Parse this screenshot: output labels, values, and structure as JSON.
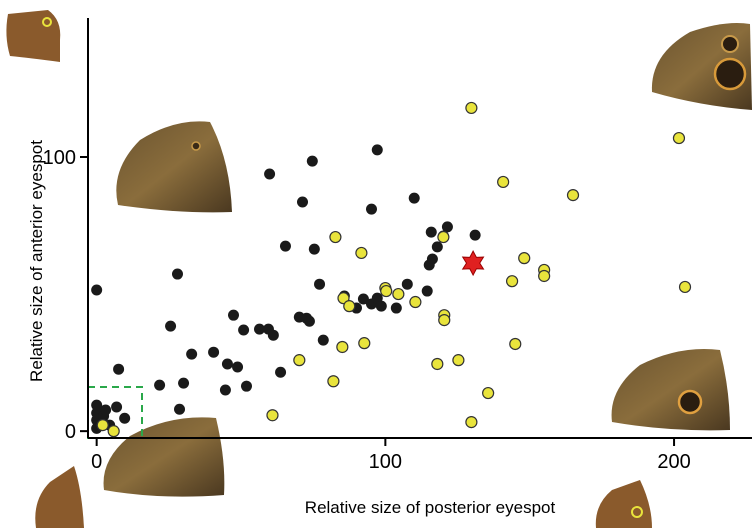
{
  "chart_data": {
    "type": "scatter",
    "x_label": "Relative size of posterior eyespot",
    "y_label": "Relative size of anterior eyespot",
    "xlim": [
      -3,
      227
    ],
    "ylim": [
      -2.5,
      150.7
    ],
    "xticks": [
      0,
      100,
      200
    ],
    "yticks": [
      0,
      100
    ],
    "series": [
      {
        "color": "#1a1a1a",
        "marker": "circle",
        "x": [
          0,
          0,
          0,
          0,
          0,
          2.4,
          4.5,
          3.1,
          6.9,
          9.7,
          7.6,
          21.8,
          25.6,
          28,
          28.7,
          30.1,
          32.9,
          40.5,
          44.6,
          45.3,
          48.8,
          47.4,
          50.9,
          51.9,
          56.4,
          59.5,
          61.2,
          59.9,
          63.7,
          65.4,
          70.2,
          71.3,
          72.7,
          73.7,
          74.7,
          75.4,
          77.2,
          78.5,
          85.8,
          90,
          92.4,
          95.2,
          95.2,
          97.2,
          97.2,
          98.6,
          103.8,
          107.6,
          110,
          114.5,
          115.2,
          116.3,
          115.9,
          118,
          120.1,
          121.5,
          131.1
        ],
        "values": [
          51.5,
          9.5,
          6.6,
          4,
          1,
          5.5,
          2.2,
          7.7,
          8.8,
          4.7,
          22.6,
          16.8,
          38.3,
          57.3,
          8,
          17.5,
          28.1,
          28.8,
          15,
          24.5,
          23.4,
          42.3,
          36.9,
          16.4,
          37.2,
          37.2,
          35,
          93.8,
          21.5,
          67.5,
          41.6,
          83.6,
          41.2,
          40.1,
          98.5,
          66.4,
          53.6,
          33.2,
          49.3,
          44.9,
          48.2,
          81,
          46.4,
          102.6,
          48.5,
          45.6,
          44.9,
          53.6,
          85,
          51.1,
          60.6,
          62.8,
          72.6,
          67.2,
          71.2,
          74.5,
          71.5
        ]
      },
      {
        "color": "#e9e43c",
        "marker": "circle",
        "x": [
          5.9,
          2.1,
          60.9,
          70.2,
          82,
          82.7,
          85.5,
          85.1,
          87.5,
          91.7,
          92.7,
          100,
          100.3,
          104.5,
          110.4,
          118,
          120.4,
          120.4,
          120.1,
          125.3,
          129.8,
          129.8,
          135.6,
          140.8,
          143.9,
          145,
          148.1,
          155,
          155,
          165,
          201.7,
          203.8
        ],
        "values": [
          0,
          2.2,
          5.8,
          25.9,
          18.2,
          70.8,
          48.5,
          30.7,
          45.6,
          65,
          32.1,
          52.2,
          51.1,
          50,
          47.1,
          24.5,
          42.3,
          40.5,
          70.8,
          25.9,
          117.9,
          3.3,
          13.9,
          90.9,
          54.7,
          31.8,
          63.1,
          58.8,
          56.6,
          86.1,
          106.9,
          52.6
        ]
      },
      {
        "color": "#e02020",
        "marker": "star",
        "x": [
          130.4
        ],
        "values": [
          61.3
        ]
      }
    ]
  }
}
